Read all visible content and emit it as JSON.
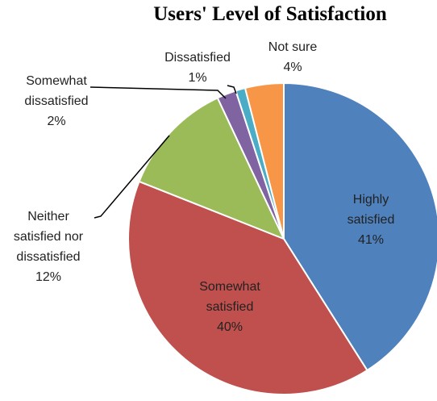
{
  "chart_data": {
    "type": "pie",
    "title": "Users' Level of Satisfaction",
    "categories": [
      "Highly satisfied",
      "Somewhat satisfied",
      "Neither satisfied nor dissatisfied",
      "Somewhat dissatisfied",
      "Dissatisfied",
      "Not sure"
    ],
    "values": [
      41,
      40,
      12,
      2,
      1,
      4
    ],
    "value_labels": [
      "41%",
      "40%",
      "12%",
      "2%",
      "1%",
      "4%"
    ],
    "colors": [
      "#4f81bd",
      "#c0504d",
      "#9bbb59",
      "#8064a2",
      "#4bacc6",
      "#f79646"
    ]
  }
}
